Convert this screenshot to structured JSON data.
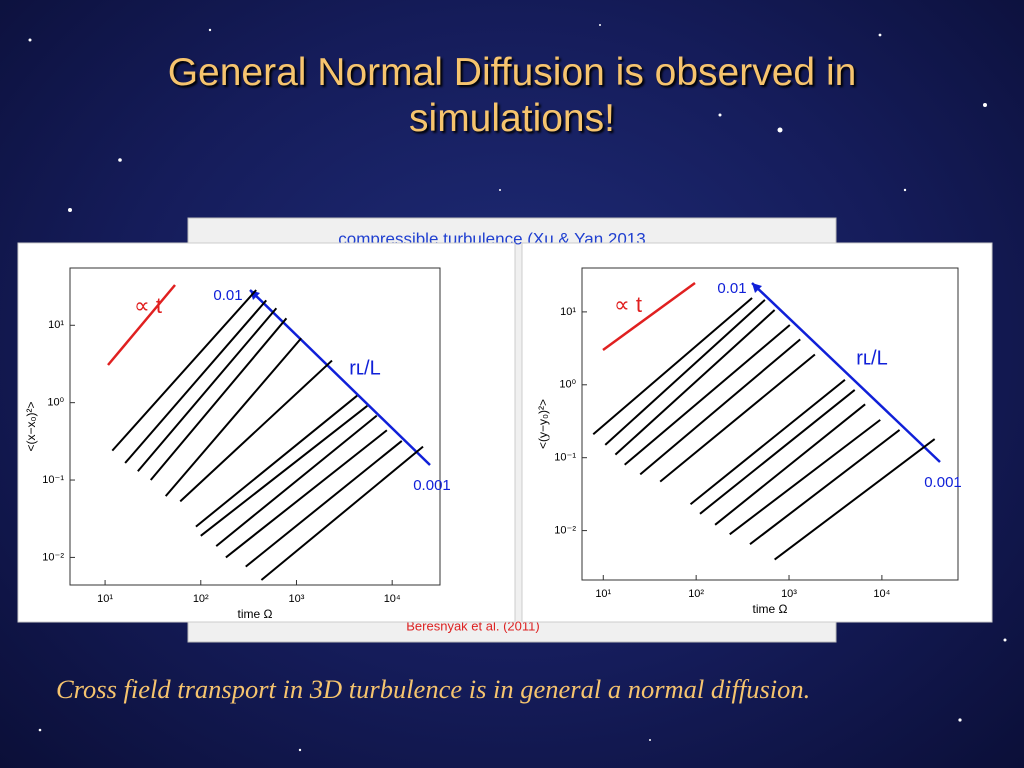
{
  "title": "General Normal Diffusion is observed in simulations!",
  "caption": "Cross field transport in 3D turbulence is in general a normal diffusion.",
  "background_heading": "compressible turbulence (Xu & Yan 2013",
  "background_credit": "Beresnyak et al. (2011)",
  "chart_data": [
    {
      "type": "line",
      "xlabel": "time Ω",
      "ylabel": "<(x−x₀)²>",
      "xlog": true,
      "ylog": true,
      "xlim": [
        4.3,
        31600
      ],
      "ylim": [
        0.0044,
        55
      ],
      "xticks": [
        {
          "value": 10,
          "label": "10¹"
        },
        {
          "value": 100,
          "label": "10²"
        },
        {
          "value": 1000,
          "label": "10³"
        },
        {
          "value": 10000,
          "label": "10⁴"
        }
      ],
      "yticks": [
        {
          "value": 10,
          "label": "10¹"
        },
        {
          "value": 1,
          "label": "10⁰"
        },
        {
          "value": 0.1,
          "label": "10⁻¹"
        },
        {
          "value": 0.01,
          "label": "10⁻²"
        }
      ],
      "annotations": [
        "∝ t",
        "rʟ/L",
        "0.01",
        "0.001"
      ],
      "series": [
        {
          "color": "#000000",
          "x": [
            11.9,
            379
          ],
          "values": [
            0.24,
            28.5
          ]
        },
        {
          "color": "#000000",
          "x": [
            16.2,
            483
          ],
          "values": [
            0.166,
            21
          ]
        },
        {
          "color": "#000000",
          "x": [
            22,
            616
          ],
          "values": [
            0.13,
            16.6
          ]
        },
        {
          "color": "#000000",
          "x": [
            30,
            785
          ],
          "values": [
            0.1,
            12.3
          ]
        },
        {
          "color": "#000000",
          "x": [
            43,
            1120
          ],
          "values": [
            0.062,
            6.8
          ]
        },
        {
          "color": "#000000",
          "x": [
            61,
            2350
          ],
          "values": [
            0.053,
            3.5
          ]
        },
        {
          "color": "#000000",
          "x": [
            89,
            4300
          ],
          "values": [
            0.025,
            1.23
          ]
        },
        {
          "color": "#000000",
          "x": [
            100,
            5500
          ],
          "values": [
            0.019,
            0.91
          ]
        },
        {
          "color": "#000000",
          "x": [
            145,
            6900
          ],
          "values": [
            0.014,
            0.68
          ]
        },
        {
          "color": "#000000",
          "x": [
            183,
            8800
          ],
          "values": [
            0.01,
            0.44
          ]
        },
        {
          "color": "#000000",
          "x": [
            295,
            12600
          ],
          "values": [
            0.0076,
            0.32
          ]
        },
        {
          "color": "#000000",
          "x": [
            430,
            21000
          ],
          "values": [
            0.0051,
            0.27
          ]
        }
      ]
    },
    {
      "type": "line",
      "xlabel": "time Ω",
      "ylabel": "<(y−y₀)²>",
      "xlog": true,
      "ylog": true,
      "xlim": [
        5.9,
        66000
      ],
      "ylim": [
        0.0021,
        40
      ],
      "xticks": [
        {
          "value": 10,
          "label": "10¹"
        },
        {
          "value": 100,
          "label": "10²"
        },
        {
          "value": 1000,
          "label": "10³"
        },
        {
          "value": 10000,
          "label": "10⁴"
        }
      ],
      "yticks": [
        {
          "value": 10,
          "label": "10¹"
        },
        {
          "value": 1,
          "label": "10⁰"
        },
        {
          "value": 0.1,
          "label": "10⁻¹"
        },
        {
          "value": 0.01,
          "label": "10⁻²"
        }
      ],
      "annotations": [
        "∝ t",
        "rʟ/L",
        "0.01",
        "0.001"
      ],
      "series": [
        {
          "color": "#000000",
          "x": [
            7.8,
            400
          ],
          "values": [
            0.21,
            15.5
          ]
        },
        {
          "color": "#000000",
          "x": [
            10.5,
            550
          ],
          "values": [
            0.15,
            14.6
          ]
        },
        {
          "color": "#000000",
          "x": [
            13.5,
            700
          ],
          "values": [
            0.11,
            10.6
          ]
        },
        {
          "color": "#000000",
          "x": [
            17,
            1020
          ],
          "values": [
            0.08,
            6.6
          ]
        },
        {
          "color": "#000000",
          "x": [
            25,
            1320
          ],
          "values": [
            0.059,
            4.2
          ]
        },
        {
          "color": "#000000",
          "x": [
            41,
            1900
          ],
          "values": [
            0.047,
            2.6
          ]
        },
        {
          "color": "#000000",
          "x": [
            87,
            4000
          ],
          "values": [
            0.023,
            1.17
          ]
        },
        {
          "color": "#000000",
          "x": [
            110,
            5100
          ],
          "values": [
            0.017,
            0.85
          ]
        },
        {
          "color": "#000000",
          "x": [
            160,
            6600
          ],
          "values": [
            0.012,
            0.54
          ]
        },
        {
          "color": "#000000",
          "x": [
            230,
            9600
          ],
          "values": [
            0.0089,
            0.33
          ]
        },
        {
          "color": "#000000",
          "x": [
            380,
            15500
          ],
          "values": [
            0.0065,
            0.24
          ]
        },
        {
          "color": "#000000",
          "x": [
            700,
            37000
          ],
          "values": [
            0.004,
            0.18
          ]
        }
      ]
    }
  ]
}
